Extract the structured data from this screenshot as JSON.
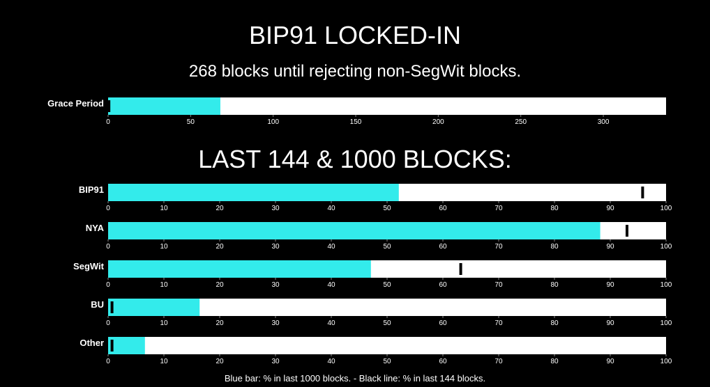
{
  "header": {
    "title": "BIP91 LOCKED-IN",
    "subtitle": "268 blocks until rejecting non-SegWit blocks."
  },
  "section": {
    "title": "LAST 144 & 1000 BLOCKS:"
  },
  "footer": {
    "note": "Blue bar: % in last 1000 blocks. - Black line: % in last 144 blocks."
  },
  "colors": {
    "background": "#000000",
    "track": "#ffffff",
    "bar": "#33ebeb",
    "marker": "#000000",
    "text": "#ffffff"
  },
  "chart_data": [
    {
      "type": "bar",
      "category": "Grace Period",
      "value": 68,
      "marker": 0.5,
      "xlim": [
        0,
        338
      ],
      "ticks": [
        0,
        50,
        100,
        150,
        200,
        250,
        300
      ]
    },
    {
      "type": "bar",
      "category": "BIP91",
      "value": 52.1,
      "marker": 95.8,
      "xlim": [
        0,
        100
      ],
      "ticks": [
        0,
        10,
        20,
        30,
        40,
        50,
        60,
        70,
        80,
        90,
        100
      ]
    },
    {
      "type": "bar",
      "category": "NYA",
      "value": 88.2,
      "marker": 93.0,
      "xlim": [
        0,
        100
      ],
      "ticks": [
        0,
        10,
        20,
        30,
        40,
        50,
        60,
        70,
        80,
        90,
        100
      ]
    },
    {
      "type": "bar",
      "category": "SegWit",
      "value": 47.1,
      "marker": 63.2,
      "xlim": [
        0,
        100
      ],
      "ticks": [
        0,
        10,
        20,
        30,
        40,
        50,
        60,
        70,
        80,
        90,
        100
      ]
    },
    {
      "type": "bar",
      "category": "BU",
      "value": 16.4,
      "marker": 0.7,
      "xlim": [
        0,
        100
      ],
      "ticks": [
        0,
        10,
        20,
        30,
        40,
        50,
        60,
        70,
        80,
        90,
        100
      ]
    },
    {
      "type": "bar",
      "category": "Other",
      "value": 6.6,
      "marker": 0.7,
      "xlim": [
        0,
        100
      ],
      "ticks": [
        0,
        10,
        20,
        30,
        40,
        50,
        60,
        70,
        80,
        90,
        100
      ]
    }
  ]
}
